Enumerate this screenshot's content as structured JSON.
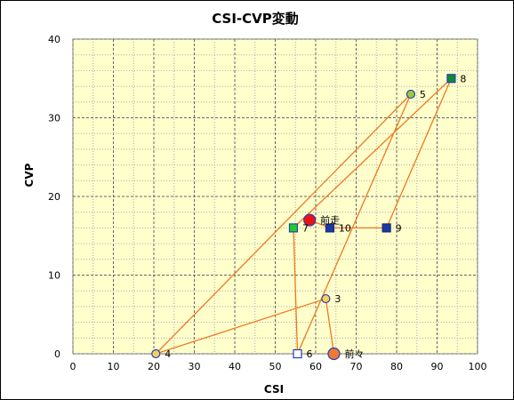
{
  "chart_data": {
    "type": "scatter",
    "title": "CSI-CVP変動",
    "xlabel": "CSI",
    "ylabel": "CVP",
    "xlim": [
      0,
      100
    ],
    "ylim": [
      0,
      40
    ],
    "x_ticks": [
      0,
      10,
      20,
      30,
      40,
      50,
      60,
      70,
      80,
      90,
      100
    ],
    "y_ticks": [
      0,
      10,
      20,
      30,
      40
    ],
    "grid": true,
    "plot_background": "#ffffcc",
    "line_color": "#f07820",
    "points": [
      {
        "label": "前々",
        "x": 64.5,
        "y": 0,
        "shape": "circle",
        "size": "large",
        "fill": "#f07830",
        "stroke": "#2040c0"
      },
      {
        "label": "3",
        "x": 62.5,
        "y": 7,
        "shape": "circle",
        "size": "small",
        "fill": "#f8d058",
        "stroke": "#2040c0"
      },
      {
        "label": "4",
        "x": 20.5,
        "y": 0,
        "shape": "circle",
        "size": "small",
        "fill": "#f8d058",
        "stroke": "#2040c0"
      },
      {
        "label": "5",
        "x": 83.5,
        "y": 33,
        "shape": "circle",
        "size": "small",
        "fill": "#9acd32",
        "stroke": "#2040c0"
      },
      {
        "label": "6",
        "x": 55.5,
        "y": 0,
        "shape": "square",
        "size": "small",
        "fill": "#ffffff",
        "stroke": "#2040c0"
      },
      {
        "label": "7",
        "x": 54.5,
        "y": 16,
        "shape": "square",
        "size": "small",
        "fill": "#22cc22",
        "stroke": "#2040c0"
      },
      {
        "label": "8",
        "x": 93.5,
        "y": 35,
        "shape": "square",
        "size": "small",
        "fill": "#118833",
        "stroke": "#2040c0"
      },
      {
        "label": "9",
        "x": 77.5,
        "y": 16,
        "shape": "square",
        "size": "small",
        "fill": "#1a3aa0",
        "stroke": "#1a2a80"
      },
      {
        "label": "10",
        "x": 63.5,
        "y": 16,
        "shape": "square",
        "size": "small",
        "fill": "#1a3aa0",
        "stroke": "#1a2a80"
      },
      {
        "label": "前走",
        "x": 58.5,
        "y": 17,
        "shape": "circle",
        "size": "large",
        "fill": "#ee1111",
        "stroke": "#2040c0"
      }
    ]
  }
}
